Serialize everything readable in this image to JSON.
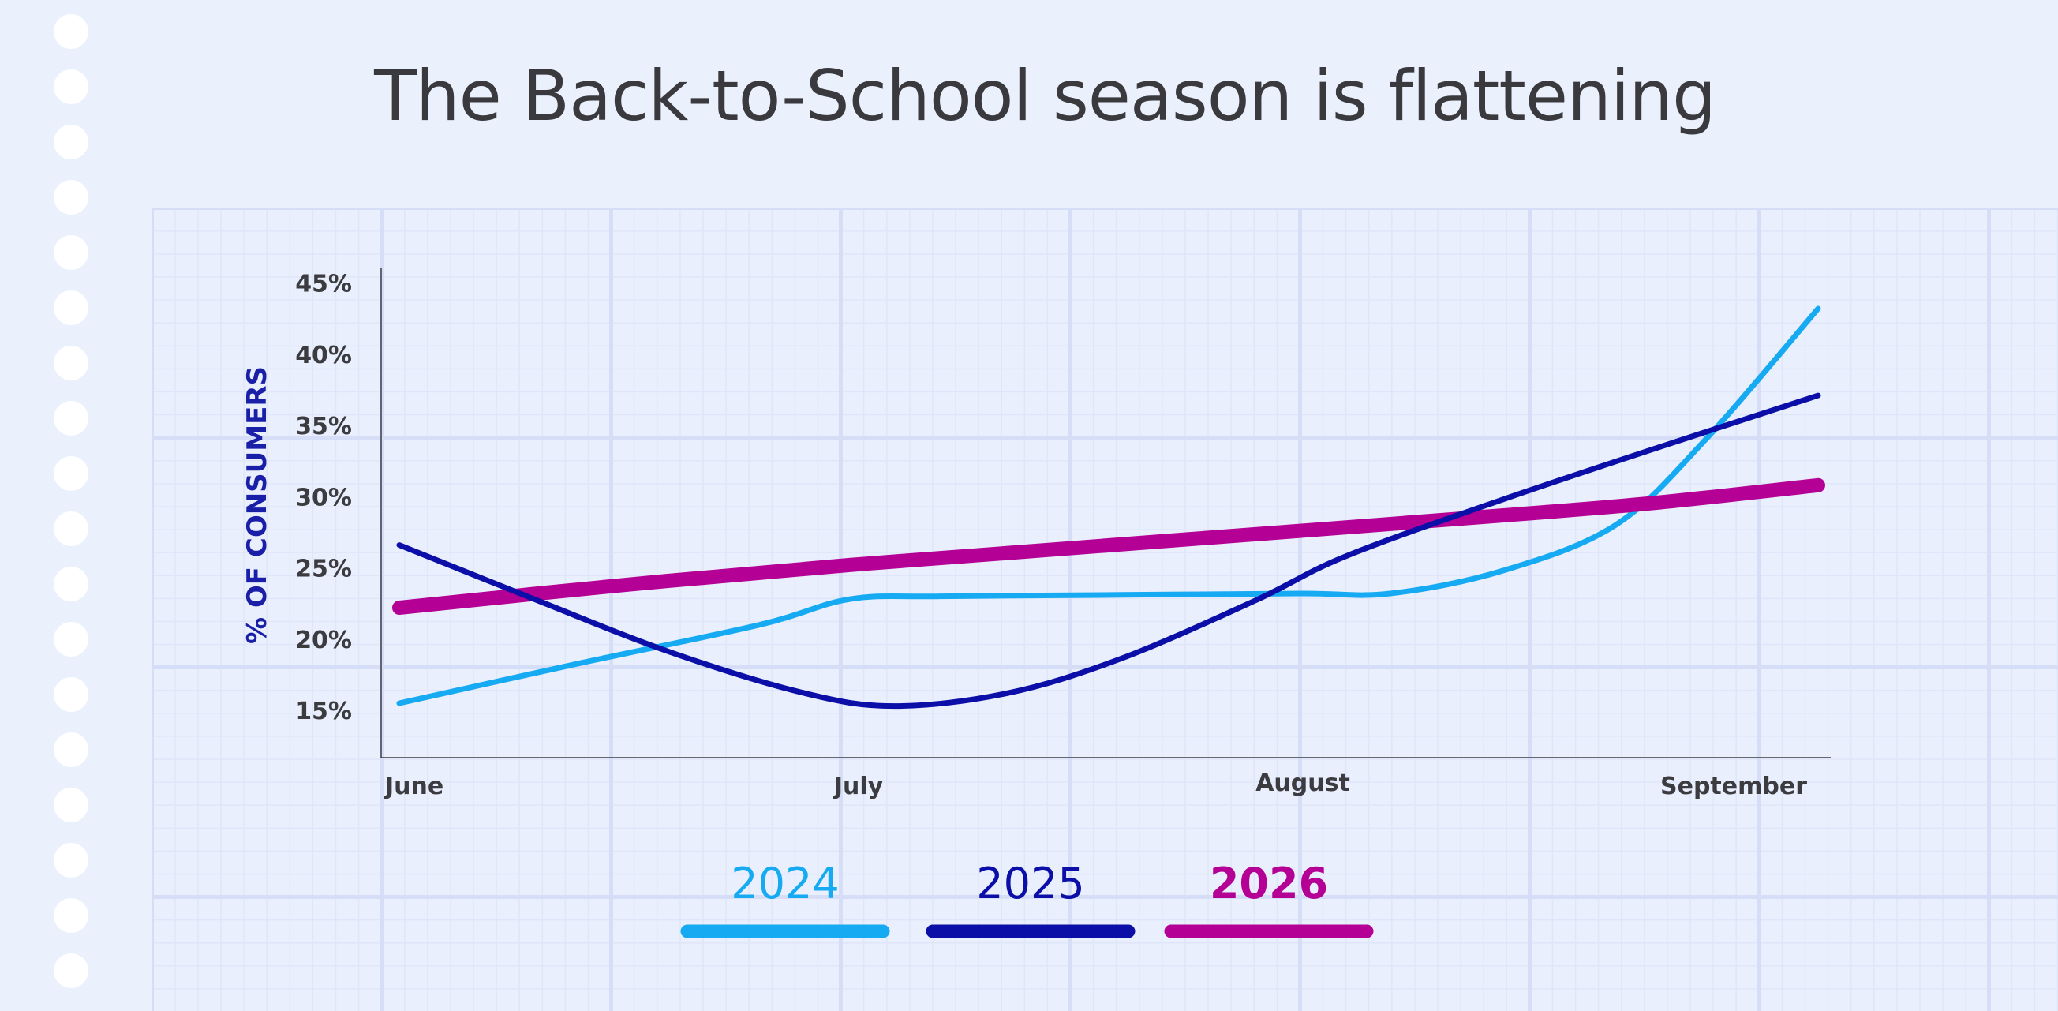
{
  "title": "The Back-to-School season is flattening",
  "colors": {
    "background": "#eaf0fc",
    "s2024": "#16aaf2",
    "s2025": "#0b0fa8",
    "s2026": "#b40095",
    "text": "#3a3a3e"
  },
  "chart_data": {
    "type": "line",
    "title": "The Back-to-School season is flattening",
    "xlabel": "",
    "ylabel": "% OF CONSUMERS",
    "ylim": [
      10,
      47
    ],
    "y_ticks": [
      "15%",
      "20%",
      "25%",
      "30%",
      "35%",
      "40%",
      "45%"
    ],
    "x_ticks": [
      "June",
      "July",
      "August",
      "September"
    ],
    "xlim": [
      0,
      3.2
    ],
    "legend_position": "bottom",
    "grid": true,
    "series": [
      {
        "name": "2024",
        "color": "#16aaf2",
        "width": 7,
        "points": [
          [
            0.0,
            15.5
          ],
          [
            0.4,
            18.3
          ],
          [
            0.8,
            21.0
          ],
          [
            1.0,
            22.8
          ],
          [
            1.2,
            23.0
          ],
          [
            1.6,
            23.1
          ],
          [
            2.0,
            23.2
          ],
          [
            2.2,
            23.2
          ],
          [
            2.45,
            24.8
          ],
          [
            2.7,
            28.0
          ],
          [
            2.9,
            34.0
          ],
          [
            3.15,
            43.2
          ]
        ]
      },
      {
        "name": "2025",
        "color": "#0b0fa8",
        "width": 7,
        "points": [
          [
            0.0,
            26.6
          ],
          [
            0.3,
            22.8
          ],
          [
            0.6,
            19.1
          ],
          [
            0.9,
            16.2
          ],
          [
            1.1,
            15.3
          ],
          [
            1.35,
            16.2
          ],
          [
            1.6,
            18.6
          ],
          [
            1.9,
            22.7
          ],
          [
            2.1,
            25.8
          ],
          [
            2.45,
            29.8
          ],
          [
            2.8,
            33.5
          ],
          [
            3.15,
            37.1
          ]
        ]
      },
      {
        "name": "2026",
        "color": "#b40095",
        "width": 18,
        "points": [
          [
            0.0,
            22.2
          ],
          [
            0.5,
            23.8
          ],
          [
            1.0,
            25.2
          ],
          [
            1.5,
            26.4
          ],
          [
            2.0,
            27.6
          ],
          [
            2.5,
            28.8
          ],
          [
            2.8,
            29.6
          ],
          [
            3.15,
            30.8
          ]
        ]
      }
    ]
  }
}
